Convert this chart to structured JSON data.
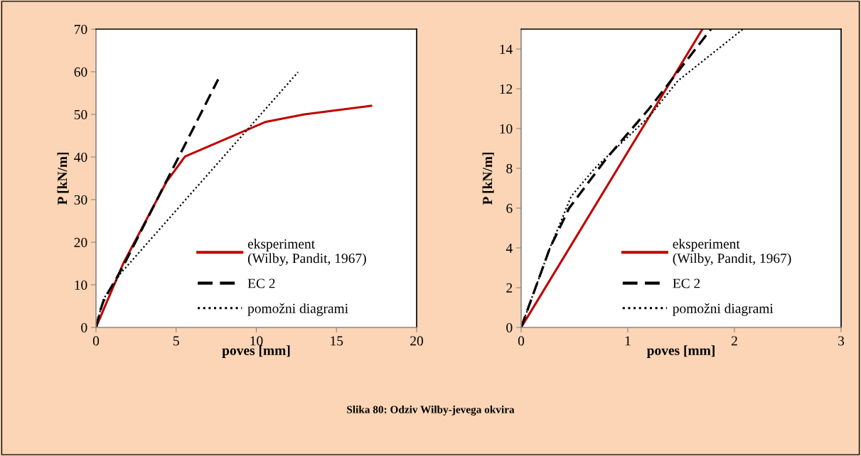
{
  "chart_data": [
    {
      "type": "line",
      "xlabel": "poves [mm]",
      "ylabel": "P [kN/m]",
      "xlim": [
        0,
        20
      ],
      "ylim": [
        0,
        70
      ],
      "xticks": [
        0,
        5,
        10,
        15,
        20
      ],
      "yticks": [
        0,
        10,
        20,
        30,
        40,
        50,
        60,
        70
      ],
      "grid": false,
      "legend": "bottom right",
      "annotations": [
        "Slika 80: Odziv Wilby-jevega okvira"
      ],
      "series": [
        {
          "name": "eksperiment (Wilby, Pandit, 1967)",
          "color": "#c00000",
          "line_style": "solid",
          "x": [
            0,
            1.7,
            4.4,
            5.55,
            10.55,
            13,
            17.16
          ],
          "values": [
            0,
            15,
            34.2,
            40.1,
            48.2,
            50,
            52
          ]
        },
        {
          "name": "EC 2",
          "color": "#000000",
          "line_style": "dashed",
          "x": [
            0,
            0.27,
            0.45,
            0.8,
            1.2,
            1.78,
            7.62
          ],
          "values": [
            0,
            4,
            6,
            8.5,
            11,
            15,
            58.2
          ]
        },
        {
          "name": "pomožni diagrami",
          "color": "#000000",
          "line_style": "dotted",
          "x": [
            0,
            0.27,
            0.47,
            0.69,
            1.2,
            1.47,
            2.08,
            12.6
          ],
          "values": [
            0,
            4,
            6.6,
            8,
            10.6,
            12.4,
            15,
            59.9
          ]
        }
      ]
    },
    {
      "type": "line",
      "xlabel": "poves [mm]",
      "ylabel": "P [kN/m]",
      "xlim": [
        0,
        3
      ],
      "ylim": [
        0,
        15
      ],
      "xticks": [
        0,
        1,
        2,
        3
      ],
      "yticks": [
        0,
        2,
        4,
        6,
        8,
        10,
        12,
        14
      ],
      "grid": false,
      "legend": "bottom right",
      "series": [
        {
          "name": "eksperiment (Wilby, Pandit, 1967)",
          "color": "#c00000",
          "line_style": "solid",
          "x": [
            0,
            1.7
          ],
          "values": [
            0,
            15
          ]
        },
        {
          "name": "EC 2",
          "color": "#000000",
          "line_style": "dashed",
          "x": [
            0,
            0.27,
            0.45,
            0.8,
            1.2,
            1.78
          ],
          "values": [
            0,
            4,
            6,
            8.5,
            11,
            15
          ]
        },
        {
          "name": "pomožni diagrami",
          "color": "#000000",
          "line_style": "dotted",
          "x": [
            0,
            0.27,
            0.47,
            0.69,
            1.2,
            1.47,
            2.08
          ],
          "values": [
            0,
            4,
            6.6,
            8,
            10.6,
            12.4,
            15
          ]
        }
      ]
    }
  ]
}
